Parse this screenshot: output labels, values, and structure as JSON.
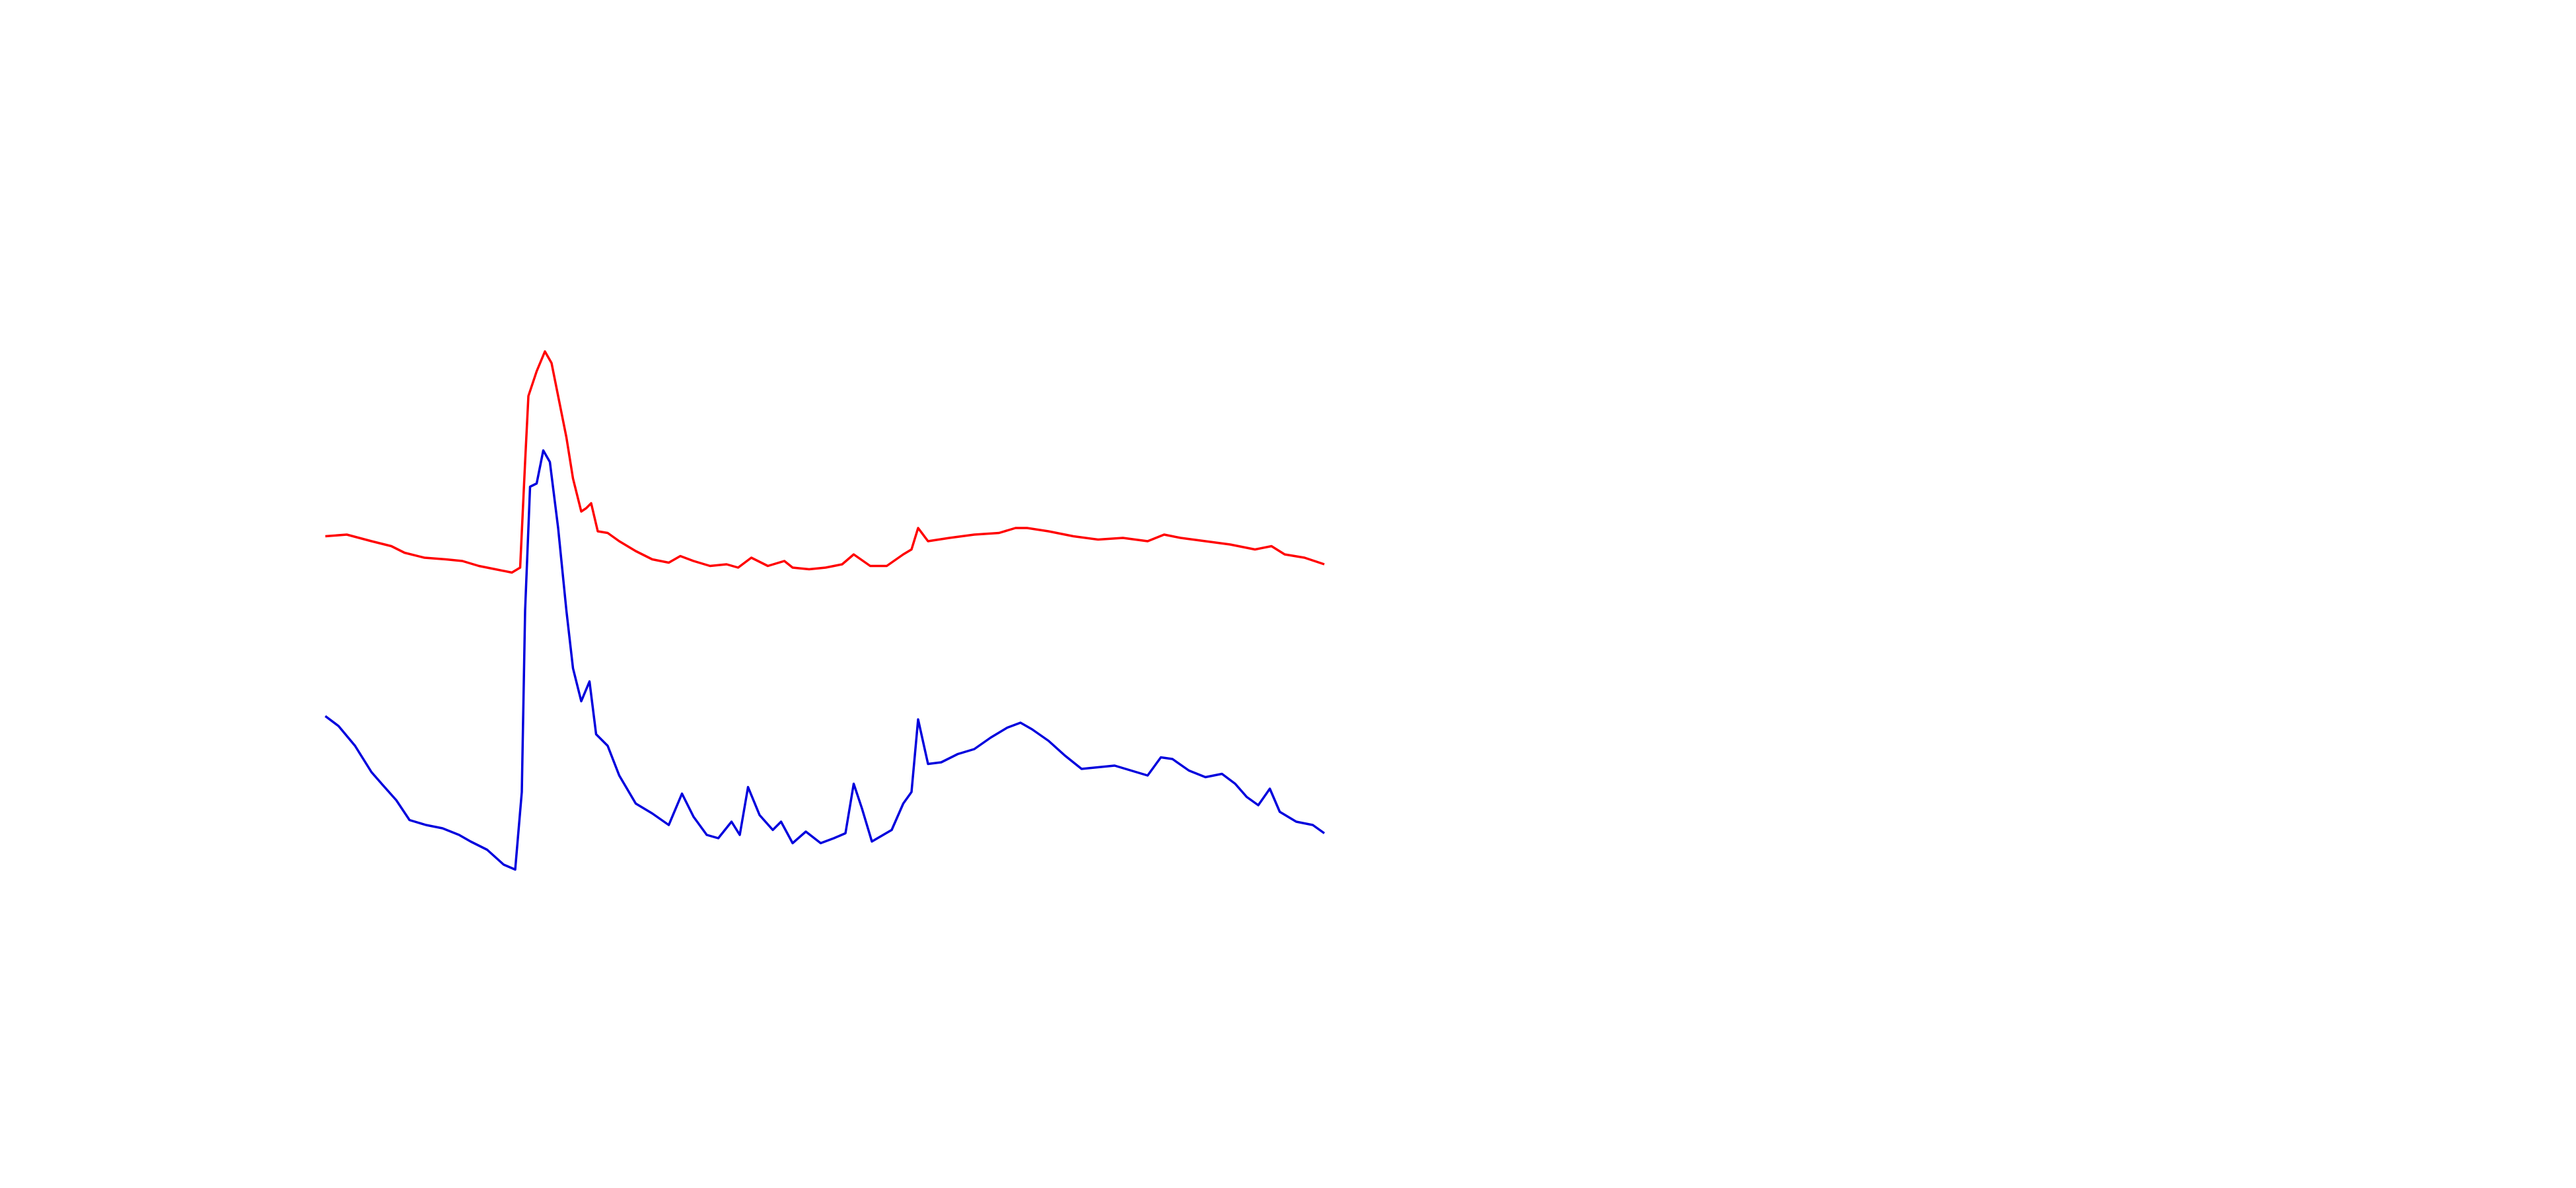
{
  "chart_data": {
    "type": "line",
    "xlim": [
      0,
      1560
    ],
    "ylim": [
      0,
      720
    ],
    "series": [
      {
        "color": "#ff0000",
        "x": [
          197,
          210,
          225,
          237,
          245,
          257,
          270,
          280,
          290,
          300,
          310,
          315,
          318,
          320,
          325,
          330,
          334,
          338,
          343,
          347,
          352,
          355,
          358,
          362,
          368,
          375,
          385,
          395,
          405,
          412,
          420,
          430,
          440,
          447,
          455,
          465,
          475,
          480,
          490,
          500,
          510,
          517,
          527,
          537,
          547,
          552,
          556,
          562,
          575,
          590,
          605,
          615,
          622,
          635,
          650,
          665,
          680,
          695,
          705,
          715,
          730,
          745,
          760,
          770,
          778,
          790,
          802
        ],
        "values": [
          395,
          396,
          392,
          389,
          385,
          382,
          381,
          380,
          377,
          375,
          373,
          376,
          440,
          480,
          495,
          507,
          500,
          480,
          455,
          430,
          410,
          412,
          415,
          398,
          397,
          392,
          386,
          381,
          379,
          383,
          380,
          377,
          378,
          376,
          382,
          377,
          380,
          376,
          375,
          376,
          378,
          384,
          377,
          377,
          384,
          387,
          400,
          392,
          394,
          396,
          397,
          400,
          400,
          398,
          395,
          393,
          394,
          392,
          396,
          394,
          392,
          390,
          387,
          389,
          384,
          382,
          378
        ]
      },
      {
        "color": "#0000dd",
        "x": [
          197,
          205,
          215,
          225,
          232,
          240,
          248,
          258,
          268,
          278,
          285,
          295,
          305,
          312,
          316,
          318,
          321,
          325,
          329,
          333,
          338,
          343,
          347,
          352,
          357,
          361,
          368,
          375,
          385,
          395,
          405,
          413,
          420,
          428,
          435,
          443,
          448,
          453,
          460,
          468,
          473,
          480,
          488,
          497,
          505,
          512,
          517,
          522,
          528,
          540,
          547,
          552,
          556,
          562,
          570,
          580,
          590,
          600,
          610,
          618,
          625,
          635,
          645,
          655,
          665,
          675,
          685,
          695,
          703,
          710,
          720,
          730,
          740,
          748,
          755,
          762,
          769,
          775,
          785,
          795,
          802
        ],
        "values": [
          286,
          280,
          268,
          252,
          244,
          235,
          223,
          220,
          218,
          214,
          210,
          205,
          196,
          193,
          240,
          350,
          425,
          427,
          447,
          440,
          400,
          350,
          315,
          295,
          307,
          275,
          268,
          250,
          233,
          227,
          220,
          239,
          225,
          214,
          212,
          222,
          214,
          243,
          226,
          217,
          222,
          209,
          216,
          209,
          212,
          215,
          245,
          230,
          210,
          217,
          233,
          240,
          284,
          257,
          258,
          263,
          266,
          273,
          279,
          282,
          278,
          271,
          262,
          254,
          255,
          256,
          253,
          250,
          261,
          260,
          253,
          249,
          251,
          245,
          237,
          232,
          242,
          228,
          222,
          220,
          215
        ]
      }
    ]
  }
}
